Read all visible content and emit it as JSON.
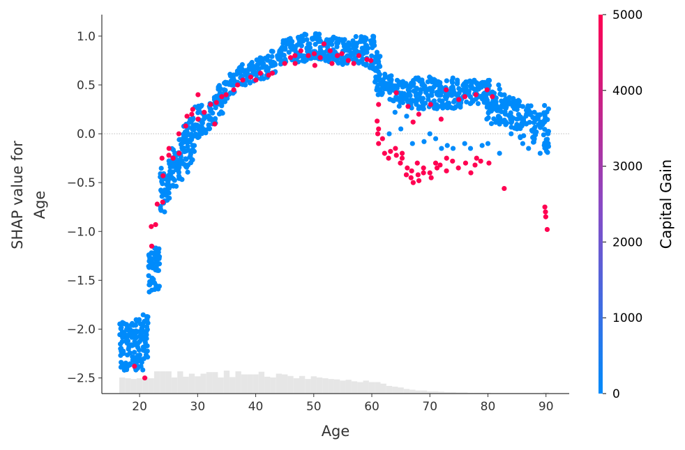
{
  "chart_data": {
    "type": "scatter",
    "title": "",
    "xlabel": "Age",
    "ylabel_lines": [
      "SHAP value for",
      "Age"
    ],
    "xlim": [
      13.5,
      94
    ],
    "ylim": [
      -2.66,
      1.22
    ],
    "xticks": [
      20,
      30,
      40,
      50,
      60,
      70,
      80,
      90
    ],
    "yticks": [
      1.0,
      0.5,
      0.0,
      -0.5,
      -1.0,
      -1.5,
      -2.0,
      -2.5
    ],
    "ytick_labels": [
      "1.0",
      "0.5",
      "0.0",
      "−0.5",
      "−1.0",
      "−1.5",
      "−2.0",
      "−2.5"
    ],
    "zero_line": true,
    "grid": false,
    "colorbar": {
      "label": "Capital Gain",
      "min": 0,
      "max": 5000,
      "ticks": [
        0,
        1000,
        2000,
        3000,
        4000,
        5000
      ],
      "color_low": "#008bfb",
      "color_high": "#ff0051"
    },
    "colors": {
      "low": "#008bfb",
      "high": "#ff0051",
      "histogram": "#e6e6e6",
      "axis": "#333333",
      "zero_line": "#bbbbbb"
    },
    "histogram": {
      "x": [
        17,
        18,
        19,
        20,
        21,
        22,
        23,
        24,
        25,
        26,
        27,
        28,
        29,
        30,
        31,
        32,
        33,
        34,
        35,
        36,
        37,
        38,
        39,
        40,
        41,
        42,
        43,
        44,
        45,
        46,
        47,
        48,
        49,
        50,
        51,
        52,
        53,
        54,
        55,
        56,
        57,
        58,
        59,
        60,
        61,
        62,
        63,
        64,
        65,
        66,
        67,
        68,
        69,
        70,
        71,
        72,
        73,
        74,
        75,
        76,
        77,
        78,
        79,
        80,
        81,
        82,
        83,
        84,
        85,
        86,
        87,
        88,
        89,
        90
      ],
      "counts": [
        42,
        40,
        38,
        40,
        44,
        40,
        58,
        58,
        58,
        42,
        58,
        44,
        52,
        45,
        52,
        56,
        56,
        42,
        60,
        43,
        58,
        50,
        50,
        50,
        57,
        44,
        42,
        52,
        50,
        46,
        40,
        46,
        38,
        45,
        42,
        40,
        38,
        37,
        34,
        36,
        32,
        30,
        34,
        30,
        30,
        26,
        20,
        18,
        16,
        12,
        10,
        8,
        8,
        6,
        6,
        5,
        4,
        4,
        3,
        3,
        2,
        2,
        2,
        2,
        1,
        1,
        1,
        1,
        1,
        1,
        1,
        1,
        1,
        3
      ]
    },
    "low_band": {
      "ages": [
        17,
        18,
        19,
        20,
        21,
        22,
        23,
        24,
        25,
        26,
        27,
        28,
        29,
        30,
        31,
        32,
        33,
        34,
        35,
        36,
        37,
        38,
        39,
        40,
        41,
        42,
        43,
        44,
        45,
        46,
        47,
        48,
        49,
        50,
        51,
        52,
        53,
        54,
        55,
        56,
        57,
        58,
        59,
        60,
        61,
        62,
        63,
        64,
        65,
        66,
        67,
        68,
        69,
        70,
        71,
        72,
        73,
        74,
        75,
        76,
        77,
        78,
        79,
        80,
        81,
        82,
        83,
        84,
        85,
        86,
        87,
        88,
        89,
        90
      ],
      "y_min": [
        -2.42,
        -2.42,
        -2.42,
        -2.42,
        -2.42,
        -1.62,
        -1.62,
        -0.8,
        -0.7,
        -0.58,
        -0.48,
        -0.4,
        -0.3,
        -0.05,
        0.0,
        0.05,
        0.1,
        0.2,
        0.3,
        0.4,
        0.48,
        0.5,
        0.52,
        0.53,
        0.55,
        0.57,
        0.6,
        0.7,
        0.72,
        0.73,
        0.73,
        0.74,
        0.75,
        0.75,
        0.75,
        0.74,
        0.73,
        0.72,
        0.71,
        0.7,
        0.7,
        0.7,
        0.68,
        0.66,
        0.4,
        0.4,
        0.35,
        0.3,
        0.28,
        0.28,
        0.26,
        0.25,
        0.25,
        0.24,
        0.25,
        0.25,
        0.26,
        0.25,
        0.27,
        0.28,
        0.3,
        0.3,
        0.32,
        0.15,
        0.1,
        0.12,
        0.08,
        0.05,
        0.05,
        -0.05,
        0.08,
        -0.15,
        0.05,
        -0.2
      ],
      "y_max": [
        -1.9,
        -1.95,
        -1.9,
        -1.9,
        -1.85,
        -1.2,
        -1.15,
        -0.35,
        -0.25,
        -0.15,
        -0.05,
        0.1,
        0.2,
        0.3,
        0.3,
        0.32,
        0.4,
        0.5,
        0.55,
        0.62,
        0.7,
        0.72,
        0.74,
        0.77,
        0.78,
        0.8,
        0.85,
        0.9,
        0.98,
        1.0,
        1.0,
        1.02,
        1.02,
        1.03,
        1.03,
        1.02,
        1.0,
        0.98,
        0.97,
        0.96,
        1.02,
        1.0,
        1.0,
        1.0,
        0.85,
        0.65,
        0.6,
        0.55,
        0.55,
        0.55,
        0.55,
        0.58,
        0.56,
        0.6,
        0.56,
        0.55,
        0.55,
        0.58,
        0.55,
        0.55,
        0.55,
        0.55,
        0.55,
        0.55,
        0.52,
        0.5,
        0.42,
        0.38,
        0.35,
        0.18,
        0.3,
        0.18,
        0.2,
        0.3
      ]
    },
    "high_points": [
      [
        21,
        -2.5
      ],
      [
        19,
        -2.38
      ],
      [
        22,
        -1.15
      ],
      [
        22,
        -0.95
      ],
      [
        23,
        -0.93
      ],
      [
        23,
        -0.72
      ],
      [
        24,
        -0.7
      ],
      [
        24,
        -0.43
      ],
      [
        24,
        -0.25
      ],
      [
        25,
        -0.15
      ],
      [
        25,
        -0.22
      ],
      [
        26,
        -0.25
      ],
      [
        27,
        -0.2
      ],
      [
        27,
        0.0
      ],
      [
        28,
        0.08
      ],
      [
        28,
        0.18
      ],
      [
        29,
        0.2
      ],
      [
        29,
        0.25
      ],
      [
        30,
        0.4
      ],
      [
        30,
        0.15
      ],
      [
        31,
        0.22
      ],
      [
        32,
        0.3
      ],
      [
        33,
        0.32
      ],
      [
        33,
        0.1
      ],
      [
        34,
        0.38
      ],
      [
        35,
        0.4
      ],
      [
        36,
        0.45
      ],
      [
        37,
        0.5
      ],
      [
        38,
        0.55
      ],
      [
        39,
        0.58
      ],
      [
        40,
        0.55
      ],
      [
        41,
        0.62
      ],
      [
        42,
        0.6
      ],
      [
        43,
        0.62
      ],
      [
        45,
        0.72
      ],
      [
        46,
        0.78
      ],
      [
        47,
        0.8
      ],
      [
        48,
        0.85
      ],
      [
        49,
        0.8
      ],
      [
        50,
        0.82
      ],
      [
        51,
        0.78
      ],
      [
        52,
        0.92
      ],
      [
        53,
        0.85
      ],
      [
        54,
        0.8
      ],
      [
        55,
        0.82
      ],
      [
        56,
        0.75
      ],
      [
        57,
        0.72
      ],
      [
        58,
        0.8
      ],
      [
        59,
        0.76
      ],
      [
        60,
        0.75
      ],
      [
        47,
        0.72
      ],
      [
        50,
        0.7
      ],
      [
        53,
        0.72
      ],
      [
        61,
        0.3
      ],
      [
        61,
        0.0
      ],
      [
        61,
        -0.1
      ],
      [
        61,
        0.13
      ],
      [
        61,
        0.05
      ],
      [
        62,
        -0.05
      ],
      [
        62,
        -0.2
      ],
      [
        63,
        -0.25
      ],
      [
        63,
        -0.18
      ],
      [
        64,
        -0.22
      ],
      [
        64,
        -0.15
      ],
      [
        65,
        -0.2
      ],
      [
        65,
        -0.25
      ],
      [
        65,
        -0.3
      ],
      [
        66,
        -0.35
      ],
      [
        66,
        -0.42
      ],
      [
        67,
        -0.45
      ],
      [
        67,
        -0.5
      ],
      [
        67,
        -0.38
      ],
      [
        68,
        -0.3
      ],
      [
        68,
        -0.42
      ],
      [
        68,
        -0.48
      ],
      [
        69,
        -0.4
      ],
      [
        69,
        -0.35
      ],
      [
        70,
        -0.45
      ],
      [
        70,
        -0.4
      ],
      [
        71,
        -0.35
      ],
      [
        71,
        -0.3
      ],
      [
        72,
        -0.32
      ],
      [
        73,
        -0.25
      ],
      [
        73,
        -0.38
      ],
      [
        74,
        -0.28
      ],
      [
        75,
        -0.35
      ],
      [
        76,
        -0.3
      ],
      [
        77,
        -0.4
      ],
      [
        78,
        -0.32
      ],
      [
        78,
        -0.25
      ],
      [
        79,
        -0.28
      ],
      [
        80,
        -0.3
      ],
      [
        64,
        0.42
      ],
      [
        66,
        0.28
      ],
      [
        67,
        0.12
      ],
      [
        68,
        0.2
      ],
      [
        70,
        0.3
      ],
      [
        72,
        0.15
      ],
      [
        73,
        0.45
      ],
      [
        75,
        0.35
      ],
      [
        76,
        0.38
      ],
      [
        78,
        0.4
      ],
      [
        80,
        0.45
      ],
      [
        81,
        0.38
      ],
      [
        83,
        -0.56
      ],
      [
        90,
        -0.75
      ],
      [
        90,
        -0.8
      ],
      [
        90,
        -0.85
      ],
      [
        90,
        -0.98
      ]
    ],
    "low_outliers": [
      [
        63,
        0.0
      ],
      [
        65,
        0.05
      ],
      [
        67,
        -0.1
      ],
      [
        69,
        -0.08
      ],
      [
        70,
        0.0
      ],
      [
        71,
        -0.05
      ],
      [
        72,
        -0.15
      ],
      [
        73,
        -0.12
      ],
      [
        74,
        -0.15
      ],
      [
        76,
        -0.1
      ],
      [
        77,
        -0.15
      ],
      [
        79,
        -0.12
      ],
      [
        80,
        -0.1
      ],
      [
        82,
        -0.2
      ],
      [
        84,
        0.0
      ],
      [
        85,
        0.05
      ],
      [
        86,
        -0.1
      ],
      [
        87,
        -0.15
      ],
      [
        88,
        -0.05
      ],
      [
        89,
        -0.2
      ],
      [
        90,
        -0.15
      ],
      [
        86,
        0.28
      ],
      [
        88,
        0.22
      ],
      [
        85,
        0.15
      ],
      [
        83,
        0.2
      ],
      [
        82,
        0.1
      ],
      [
        64,
        0.22
      ],
      [
        66,
        0.18
      ]
    ]
  }
}
